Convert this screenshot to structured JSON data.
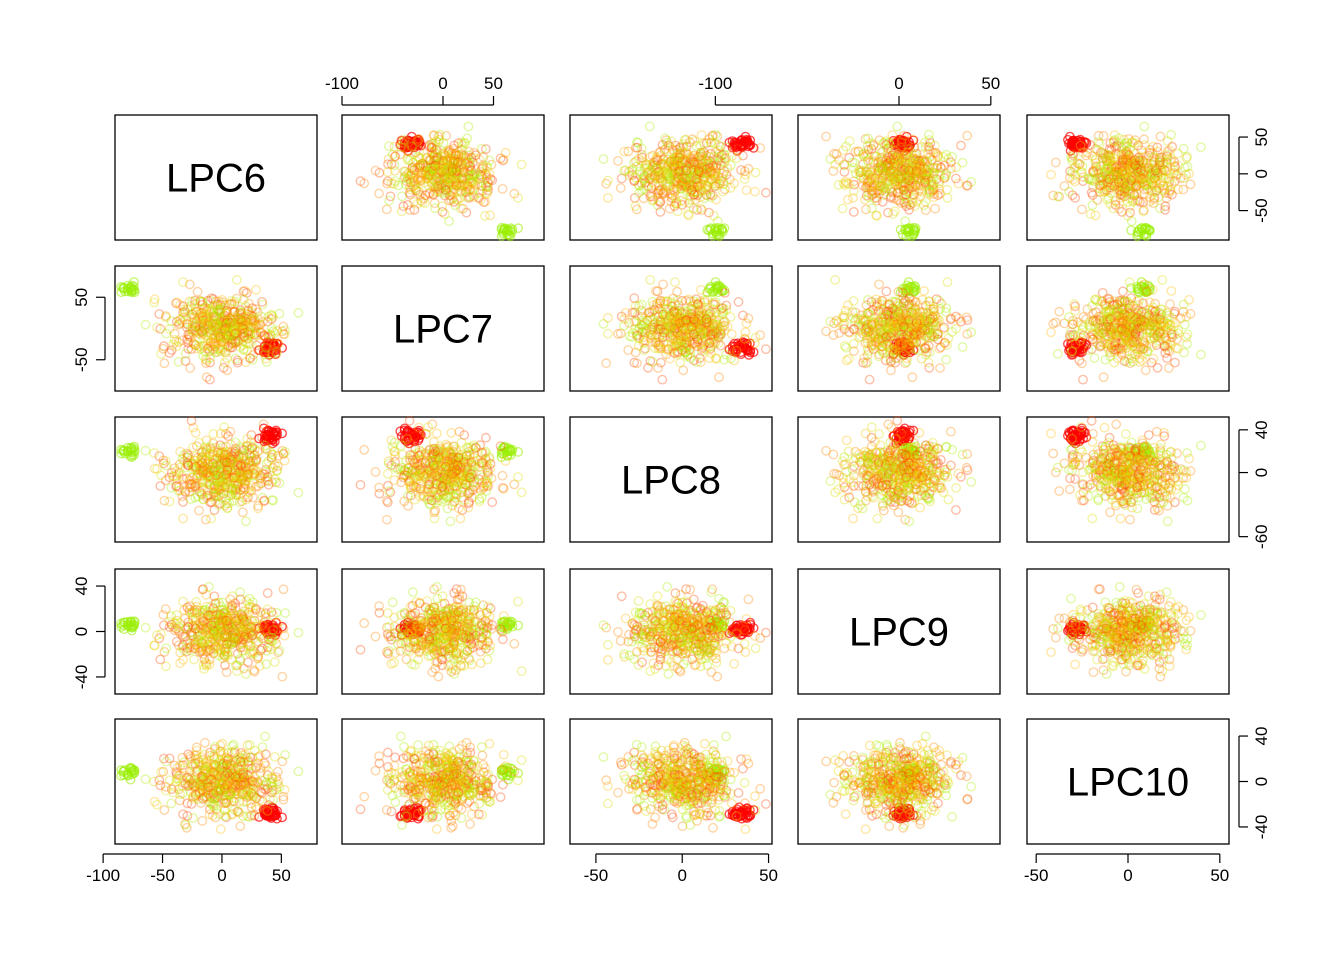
{
  "chart_data": {
    "type": "scatter",
    "variables": [
      "LPC6",
      "LPC7",
      "LPC8",
      "LPC9",
      "LPC10"
    ],
    "ranges": {
      "LPC6": [
        -90,
        80
      ],
      "LPC7": [
        -100,
        100
      ],
      "LPC8": [
        -65,
        52
      ],
      "LPC9": [
        -55,
        55
      ],
      "LPC10": [
        -55,
        55
      ]
    },
    "ticks": {
      "LPC6": [
        -100,
        -50,
        0,
        50
      ],
      "LPC7": [
        -100,
        0,
        50
      ],
      "LPC8": [
        -50,
        0,
        50
      ],
      "LPC9": [
        -100,
        0,
        50
      ],
      "LPC10": [
        -50,
        0,
        50
      ]
    },
    "tick_labels": {
      "LPC6": [
        "-100",
        "-50",
        "0",
        "50"
      ],
      "LPC7": [
        "-100",
        "0",
        "50"
      ],
      "LPC8": [
        "-50",
        "0",
        "50"
      ],
      "LPC9": [
        "-100",
        "0",
        "50"
      ],
      "LPC10": [
        "-50",
        "0",
        "50"
      ]
    },
    "row_ticks": {
      "LPC6": [
        -50,
        0,
        50
      ],
      "LPC7": [
        -50,
        50
      ],
      "LPC8": [
        -60,
        0,
        40
      ],
      "LPC9": [
        -40,
        0,
        40
      ],
      "LPC10": [
        -40,
        0,
        40
      ]
    },
    "row_tick_labels": {
      "LPC6": [
        "-50",
        "0",
        "50"
      ],
      "LPC7": [
        "-50",
        "50"
      ],
      "LPC8": [
        "-60",
        "0",
        "40"
      ],
      "LPC9": [
        "-40",
        "0",
        "40"
      ],
      "LPC10": [
        "-40",
        "0",
        "40"
      ]
    },
    "point_colors": [
      "#ff0000",
      "#ff4400",
      "#ff8800",
      "#ffbb00",
      "#dddd00",
      "#aaee00",
      "#88ff00"
    ],
    "marker": "open-circle",
    "clusters": [
      {
        "name": "red",
        "color": "#ff0000",
        "n": 40,
        "center": {
          "LPC6": 40,
          "LPC7": -32,
          "LPC8": 35,
          "LPC9": 2,
          "LPC10": -28
        }
      },
      {
        "name": "lime",
        "color": "#99ee00",
        "n": 22,
        "center": {
          "LPC6": -78,
          "LPC7": 65,
          "LPC8": 20,
          "LPC9": 5,
          "LPC10": 8
        }
      },
      {
        "name": "main",
        "color": "#ff8800",
        "n": 520,
        "center": {
          "LPC6": 0,
          "LPC7": 0,
          "LPC8": 0,
          "LPC9": 0,
          "LPC10": 0
        }
      }
    ]
  }
}
